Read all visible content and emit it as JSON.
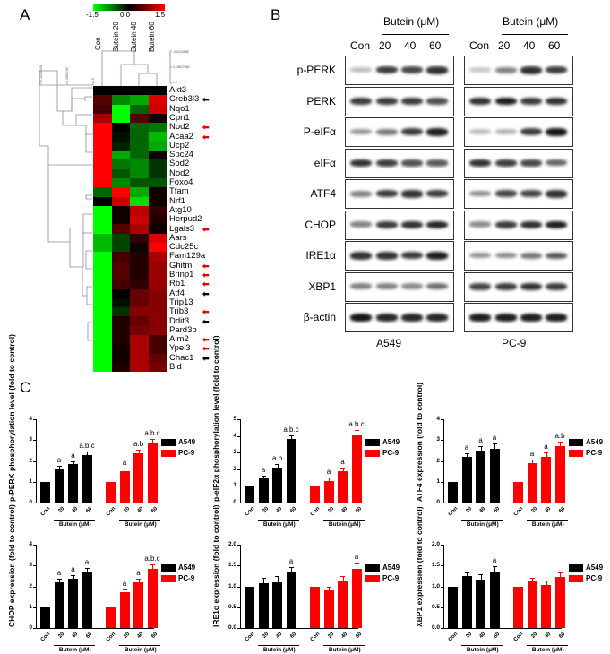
{
  "panels": {
    "A": {
      "letter": "A",
      "colorbar": {
        "min": "-1.5",
        "mid": "0.0",
        "max": "1.5",
        "low_color": "#00ff00",
        "mid_color": "#000000",
        "high_color": "#ff0000"
      },
      "columns": [
        "Con",
        "Butein 20",
        "Butein 40",
        "Butein 60"
      ],
      "col_dendro_ticks": [
        "-0.6234586",
        "0.18827069",
        "1.0"
      ],
      "row_dendro_ticks": [
        "-0.20349438",
        "0.3982728",
        "1.0"
      ],
      "genes": [
        {
          "name": "Akt3",
          "values": [
            0,
            0,
            0,
            0
          ],
          "arrow": ""
        },
        {
          "name": "Creb3l3",
          "values": [
            0.5,
            -0.8,
            -1.0,
            1.3
          ],
          "arrow": "black"
        },
        {
          "name": "Nqo1",
          "values": [
            0.4,
            -1.5,
            -0.6,
            1.2
          ],
          "arrow": ""
        },
        {
          "name": "Cpn1",
          "values": [
            1.0,
            -1.5,
            0.5,
            0.1
          ],
          "arrow": ""
        },
        {
          "name": "Nod2",
          "values": [
            1.5,
            0.0,
            -0.6,
            -0.7
          ],
          "arrow": "red"
        },
        {
          "name": "Acaa2",
          "values": [
            1.5,
            -0.1,
            -0.6,
            -1.1
          ],
          "arrow": "red"
        },
        {
          "name": "Ucp2",
          "values": [
            1.5,
            -0.2,
            -0.6,
            -1.0
          ],
          "arrow": ""
        },
        {
          "name": "Spc24",
          "values": [
            1.5,
            -1.0,
            -0.6,
            0.1
          ],
          "arrow": ""
        },
        {
          "name": "Sod2",
          "values": [
            1.5,
            -0.7,
            -0.8,
            -0.3
          ],
          "arrow": ""
        },
        {
          "name": "Nod2",
          "values": [
            1.5,
            -0.5,
            -0.8,
            -0.3
          ],
          "arrow": ""
        },
        {
          "name": "Foxo4",
          "values": [
            1.5,
            -0.8,
            -0.5,
            -0.5
          ],
          "arrow": ""
        },
        {
          "name": "Tfam",
          "values": [
            -0.6,
            1.5,
            -1.0,
            0.1
          ],
          "arrow": ""
        },
        {
          "name": "Nrf1",
          "values": [
            0.0,
            1.2,
            -1.3,
            0.1
          ],
          "arrow": ""
        },
        {
          "name": "Atg10",
          "values": [
            -1.5,
            0.1,
            1.1,
            0.3
          ],
          "arrow": ""
        },
        {
          "name": "Herpud2",
          "values": [
            -1.5,
            0.1,
            1.2,
            0.2
          ],
          "arrow": ""
        },
        {
          "name": "Lgals3",
          "values": [
            -1.5,
            0.5,
            1.0,
            0.1
          ],
          "arrow": "red"
        },
        {
          "name": "Aars",
          "values": [
            -1.1,
            -0.4,
            0.3,
            1.3
          ],
          "arrow": ""
        },
        {
          "name": "Cdc25c",
          "values": [
            -1.1,
            -0.4,
            0.1,
            1.5
          ],
          "arrow": ""
        },
        {
          "name": "Fam129a",
          "values": [
            -1.5,
            0.4,
            0.2,
            1.0
          ],
          "arrow": ""
        },
        {
          "name": "Ghitm",
          "values": [
            -1.5,
            0.5,
            0.2,
            0.9
          ],
          "arrow": "red"
        },
        {
          "name": "Brinp1",
          "values": [
            -1.5,
            0.5,
            0.2,
            0.9
          ],
          "arrow": "red"
        },
        {
          "name": "Rb1",
          "values": [
            -1.5,
            0.4,
            0.3,
            0.9
          ],
          "arrow": "red"
        },
        {
          "name": "Atf4",
          "values": [
            -1.5,
            0.0,
            0.6,
            0.8
          ],
          "arrow": "black"
        },
        {
          "name": "Trip13",
          "values": [
            -1.5,
            -0.1,
            0.6,
            0.8
          ],
          "arrow": ""
        },
        {
          "name": "Trib3",
          "values": [
            -1.5,
            -0.3,
            0.8,
            0.8
          ],
          "arrow": "red"
        },
        {
          "name": "Ddit3",
          "values": [
            -1.5,
            0.2,
            0.6,
            0.8
          ],
          "arrow": "black"
        },
        {
          "name": "Pard3b",
          "values": [
            -1.5,
            0.2,
            0.7,
            0.8
          ],
          "arrow": ""
        },
        {
          "name": "Aim2",
          "values": [
            -1.5,
            0.2,
            1.0,
            0.4
          ],
          "arrow": "red"
        },
        {
          "name": "Ypel3",
          "values": [
            -1.5,
            0.1,
            1.0,
            0.4
          ],
          "arrow": "red"
        },
        {
          "name": "Chac1",
          "values": [
            -1.5,
            0.1,
            1.0,
            0.6
          ],
          "arrow": "black"
        },
        {
          "name": "Bid",
          "values": [
            -1.5,
            0.2,
            1.0,
            0.7
          ],
          "arrow": ""
        }
      ]
    },
    "B": {
      "letter": "B",
      "treatment_header": "Butein (μM)",
      "lanes": [
        "Con",
        "20",
        "40",
        "60"
      ],
      "cell_lines": [
        "A549",
        "PC-9"
      ],
      "proteins": [
        {
          "name": "p-PERK",
          "A549": [
            0.15,
            0.8,
            0.75,
            0.85
          ],
          "PC9": [
            0.1,
            0.45,
            0.85,
            0.8
          ]
        },
        {
          "name": "PERK",
          "A549": [
            0.8,
            0.8,
            0.8,
            0.7
          ],
          "PC9": [
            0.85,
            0.95,
            0.8,
            0.85
          ]
        },
        {
          "name": "P-eIFα",
          "A549": [
            0.35,
            0.5,
            0.8,
            0.95
          ],
          "PC9": [
            0.15,
            0.2,
            0.8,
            1.0
          ]
        },
        {
          "name": "eIFα",
          "A549": [
            0.85,
            0.8,
            0.7,
            0.65
          ],
          "PC9": [
            0.85,
            0.8,
            0.75,
            0.6
          ]
        },
        {
          "name": "ATF4",
          "A549": [
            0.45,
            0.8,
            0.85,
            0.8
          ],
          "PC9": [
            0.4,
            0.75,
            0.75,
            0.85
          ]
        },
        {
          "name": "CHOP",
          "A549": [
            0.45,
            0.8,
            0.85,
            0.9
          ],
          "PC9": [
            0.4,
            0.8,
            0.85,
            0.95
          ]
        },
        {
          "name": "IRE1α",
          "A549": [
            0.85,
            0.85,
            0.8,
            0.95
          ],
          "PC9": [
            0.35,
            0.4,
            0.5,
            0.65
          ]
        },
        {
          "name": "XBP1",
          "A549": [
            0.45,
            0.45,
            0.4,
            0.55
          ],
          "PC9": [
            0.75,
            0.8,
            0.85,
            0.8
          ]
        },
        {
          "name": "β-actin",
          "A549": [
            1.0,
            0.9,
            0.9,
            0.9
          ],
          "PC9": [
            0.95,
            0.95,
            0.95,
            0.95
          ]
        }
      ]
    },
    "C": {
      "letter": "C"
    }
  },
  "chart_data": [
    {
      "type": "bar",
      "title": "",
      "ylabel": "p-PERK phosphorylation level (fold to control)",
      "ylim": [
        0,
        4
      ],
      "yticks": [
        "0",
        "1",
        "2",
        "3",
        "4"
      ],
      "categories": [
        "Con",
        "20",
        "40",
        "60"
      ],
      "group_label": "Butein (μM)",
      "series": [
        {
          "name": "A549",
          "color": "#000000",
          "values": [
            1.0,
            1.65,
            1.85,
            2.3
          ],
          "errors": [
            0,
            0.12,
            0.15,
            0.17
          ],
          "sig": [
            "",
            "a",
            "a",
            "a.b.c"
          ]
        },
        {
          "name": "PC-9",
          "color": "#ff0000",
          "values": [
            1.0,
            1.5,
            2.35,
            2.85
          ],
          "errors": [
            0,
            0.13,
            0.18,
            0.2
          ],
          "sig": [
            "",
            "a",
            "a.b",
            "a.b.c"
          ]
        }
      ]
    },
    {
      "type": "bar",
      "title": "",
      "ylabel": "p-eIF2α phosphorylation level (fold to control)",
      "ylim": [
        0,
        5
      ],
      "yticks": [
        "0",
        "1",
        "2",
        "3",
        "4",
        "5"
      ],
      "categories": [
        "Con",
        "20",
        "40",
        "60"
      ],
      "group_label": "Butein (μM)",
      "series": [
        {
          "name": "A549",
          "color": "#000000",
          "values": [
            1.0,
            1.45,
            2.1,
            3.8
          ],
          "errors": [
            0,
            0.18,
            0.2,
            0.22
          ],
          "sig": [
            "",
            "a",
            "a.b",
            "a.b.c"
          ]
        },
        {
          "name": "PC-9",
          "color": "#ff0000",
          "values": [
            1.0,
            1.3,
            1.9,
            4.1
          ],
          "errors": [
            0,
            0.2,
            0.22,
            0.25
          ],
          "sig": [
            "",
            "a",
            "a",
            "a.b.c"
          ]
        }
      ]
    },
    {
      "type": "bar",
      "title": "",
      "ylabel": "ATF4 expression (fold to control)",
      "ylim": [
        0,
        4
      ],
      "yticks": [
        "0",
        "1",
        "2",
        "3",
        "4"
      ],
      "categories": [
        "Con",
        "20",
        "40",
        "60"
      ],
      "group_label": "Butein (μM)",
      "series": [
        {
          "name": "A549",
          "color": "#000000",
          "values": [
            1.0,
            2.2,
            2.5,
            2.6
          ],
          "errors": [
            0,
            0.18,
            0.2,
            0.23
          ],
          "sig": [
            "",
            "a",
            "a",
            "a"
          ]
        },
        {
          "name": "PC-9",
          "color": "#ff0000",
          "values": [
            1.0,
            1.9,
            2.2,
            2.7
          ],
          "errors": [
            0,
            0.17,
            0.2,
            0.23
          ],
          "sig": [
            "",
            "a",
            "a",
            "a.b"
          ]
        }
      ]
    },
    {
      "type": "bar",
      "title": "",
      "ylabel": "CHOP expression (fold to control)",
      "ylim": [
        0,
        4
      ],
      "yticks": [
        "0",
        "1",
        "2",
        "3",
        "4"
      ],
      "categories": [
        "Con",
        "20",
        "40",
        "60"
      ],
      "group_label": "Butein (μM)",
      "series": [
        {
          "name": "A549",
          "color": "#000000",
          "values": [
            1.0,
            2.2,
            2.35,
            2.65
          ],
          "errors": [
            0,
            0.18,
            0.18,
            0.25
          ],
          "sig": [
            "",
            "a",
            "a",
            "a"
          ]
        },
        {
          "name": "PC-9",
          "color": "#ff0000",
          "values": [
            1.0,
            1.7,
            2.2,
            2.85
          ],
          "errors": [
            0,
            0.13,
            0.15,
            0.2
          ],
          "sig": [
            "",
            "a",
            "a",
            "a.b.c"
          ]
        }
      ]
    },
    {
      "type": "bar",
      "title": "",
      "ylabel": "IRE1α expression (fold to control)",
      "ylim": [
        0,
        2.0
      ],
      "yticks": [
        "0.0",
        "0.5",
        "1.0",
        "1.5",
        "2.0"
      ],
      "categories": [
        "Con",
        "20",
        "40",
        "60"
      ],
      "group_label": "Butein (μM)",
      "series": [
        {
          "name": "A549",
          "color": "#000000",
          "values": [
            1.0,
            1.07,
            1.1,
            1.33
          ],
          "errors": [
            0,
            0.13,
            0.14,
            0.14
          ],
          "sig": [
            "",
            "",
            "",
            "a"
          ]
        },
        {
          "name": "PC-9",
          "color": "#ff0000",
          "values": [
            1.0,
            0.9,
            1.12,
            1.42
          ],
          "errors": [
            0,
            0.1,
            0.13,
            0.16
          ],
          "sig": [
            "",
            "",
            "",
            "a"
          ]
        }
      ]
    },
    {
      "type": "bar",
      "title": "",
      "ylabel": "XBP1 expression (fold to control)",
      "ylim": [
        0,
        2.0
      ],
      "yticks": [
        "0.0",
        "0.5",
        "1.0",
        "1.5",
        "2.0"
      ],
      "categories": [
        "Con",
        "20",
        "40",
        "60"
      ],
      "group_label": "Butein (μM)",
      "series": [
        {
          "name": "A549",
          "color": "#000000",
          "values": [
            1.0,
            1.24,
            1.17,
            1.36
          ],
          "errors": [
            0,
            0.09,
            0.11,
            0.12
          ],
          "sig": [
            "",
            "",
            "",
            "a"
          ]
        },
        {
          "name": "PC-9",
          "color": "#ff0000",
          "values": [
            1.0,
            1.12,
            1.03,
            1.22
          ],
          "errors": [
            0,
            0.09,
            0.1,
            0.11
          ],
          "sig": [
            "",
            "",
            "",
            ""
          ]
        }
      ]
    }
  ]
}
